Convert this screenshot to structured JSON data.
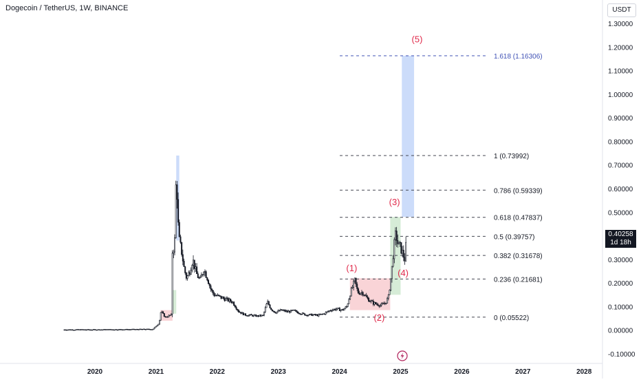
{
  "header": {
    "title": "Dogecoin / TetherUS, 1W, BINANCE",
    "currency": "USDT"
  },
  "last_price": {
    "value": "0.40258",
    "countdown": "1d 18h"
  },
  "event_icon": "lightning-icon",
  "colors": {
    "candle": "#131722",
    "fib_line": "#434651",
    "target_line": "#3f51b5",
    "wave_label": "#e0294a",
    "red_zone": "#f7c5c9",
    "green_zone": "#c8e6c9",
    "blue_zone": "#bbd0f8"
  },
  "chart_data": {
    "type": "candlestick",
    "title": "Dogecoin / TetherUS, 1W, BINANCE",
    "x_ticks": [
      "2020",
      "2021",
      "2022",
      "2023",
      "2024",
      "2025",
      "2026",
      "2027",
      "2028"
    ],
    "y_ticks": [
      "1.30000",
      "1.20000",
      "1.10000",
      "1.00000",
      "0.90000",
      "0.80000",
      "0.70000",
      "0.60000",
      "0.50000",
      "0.40000",
      "0.30000",
      "0.20000",
      "0.10000",
      "0.00000",
      "-0.10000"
    ],
    "ylim": [
      -0.1,
      1.3
    ],
    "xlim": [
      2019.5,
      2028.3
    ],
    "fib_levels": [
      {
        "label": "1.618 (1.16306)",
        "value": 1.16306,
        "target": true
      },
      {
        "label": "1 (0.73992)",
        "value": 0.73992
      },
      {
        "label": "0.786 (0.59339)",
        "value": 0.59339
      },
      {
        "label": "0.618 (0.47837)",
        "value": 0.47837
      },
      {
        "label": "0.5 (0.39757)",
        "value": 0.39757
      },
      {
        "label": "0.382 (0.31678)",
        "value": 0.31678
      },
      {
        "label": "0.236 (0.21681)",
        "value": 0.21681
      },
      {
        "label": "0 (0.05522)",
        "value": 0.05522
      }
    ],
    "waves": [
      {
        "label": "(1)",
        "x": 2024.2,
        "y": 0.25
      },
      {
        "label": "(2)",
        "x": 2024.65,
        "y": 0.04
      },
      {
        "label": "(3)",
        "x": 2024.9,
        "y": 0.53
      },
      {
        "label": "(4)",
        "x": 2025.04,
        "y": 0.23
      },
      {
        "label": "(5)",
        "x": 2025.27,
        "y": 1.22
      }
    ],
    "zones": [
      {
        "color": "red",
        "x0": 2021.07,
        "x1": 2021.27,
        "y0": 0.04,
        "y1": 0.085
      },
      {
        "color": "green",
        "x0": 2021.27,
        "x1": 2021.33,
        "y0": 0.07,
        "y1": 0.17
      },
      {
        "color": "blue",
        "x0": 2021.33,
        "x1": 2021.38,
        "y0": 0.38,
        "y1": 0.74
      },
      {
        "color": "red",
        "x0": 2024.17,
        "x1": 2024.83,
        "y0": 0.085,
        "y1": 0.22
      },
      {
        "color": "green",
        "x0": 2024.83,
        "x1": 2025.0,
        "y0": 0.15,
        "y1": 0.48
      },
      {
        "color": "blue",
        "x0": 2025.02,
        "x1": 2025.22,
        "y0": 0.48,
        "y1": 1.163
      }
    ],
    "price_path": [
      [
        2019.5,
        0.002
      ],
      [
        2020.0,
        0.002
      ],
      [
        2020.5,
        0.003
      ],
      [
        2020.95,
        0.004
      ],
      [
        2021.05,
        0.03
      ],
      [
        2021.08,
        0.08
      ],
      [
        2021.15,
        0.055
      ],
      [
        2021.25,
        0.065
      ],
      [
        2021.27,
        0.38
      ],
      [
        2021.3,
        0.32
      ],
      [
        2021.33,
        0.68
      ],
      [
        2021.36,
        0.45
      ],
      [
        2021.38,
        0.38
      ],
      [
        2021.42,
        0.33
      ],
      [
        2021.46,
        0.26
      ],
      [
        2021.5,
        0.22
      ],
      [
        2021.55,
        0.25
      ],
      [
        2021.6,
        0.3
      ],
      [
        2021.66,
        0.24
      ],
      [
        2021.72,
        0.21
      ],
      [
        2021.78,
        0.26
      ],
      [
        2021.84,
        0.22
      ],
      [
        2021.9,
        0.17
      ],
      [
        2021.95,
        0.15
      ],
      [
        2022.05,
        0.14
      ],
      [
        2022.15,
        0.13
      ],
      [
        2022.25,
        0.12
      ],
      [
        2022.35,
        0.08
      ],
      [
        2022.45,
        0.065
      ],
      [
        2022.55,
        0.063
      ],
      [
        2022.65,
        0.06
      ],
      [
        2022.75,
        0.062
      ],
      [
        2022.82,
        0.12
      ],
      [
        2022.88,
        0.09
      ],
      [
        2022.95,
        0.075
      ],
      [
        2023.05,
        0.085
      ],
      [
        2023.15,
        0.078
      ],
      [
        2023.25,
        0.082
      ],
      [
        2023.35,
        0.073
      ],
      [
        2023.45,
        0.065
      ],
      [
        2023.55,
        0.065
      ],
      [
        2023.65,
        0.063
      ],
      [
        2023.75,
        0.07
      ],
      [
        2023.85,
        0.085
      ],
      [
        2023.95,
        0.09
      ],
      [
        2024.05,
        0.085
      ],
      [
        2024.12,
        0.1
      ],
      [
        2024.18,
        0.16
      ],
      [
        2024.25,
        0.21
      ],
      [
        2024.3,
        0.16
      ],
      [
        2024.38,
        0.16
      ],
      [
        2024.45,
        0.135
      ],
      [
        2024.55,
        0.115
      ],
      [
        2024.62,
        0.11
      ],
      [
        2024.68,
        0.105
      ],
      [
        2024.75,
        0.115
      ],
      [
        2024.8,
        0.14
      ],
      [
        2024.85,
        0.24
      ],
      [
        2024.88,
        0.33
      ],
      [
        2024.92,
        0.41
      ],
      [
        2024.96,
        0.36
      ],
      [
        2025.0,
        0.35
      ],
      [
        2025.04,
        0.32
      ],
      [
        2025.07,
        0.3
      ],
      [
        2025.1,
        0.4
      ]
    ]
  }
}
